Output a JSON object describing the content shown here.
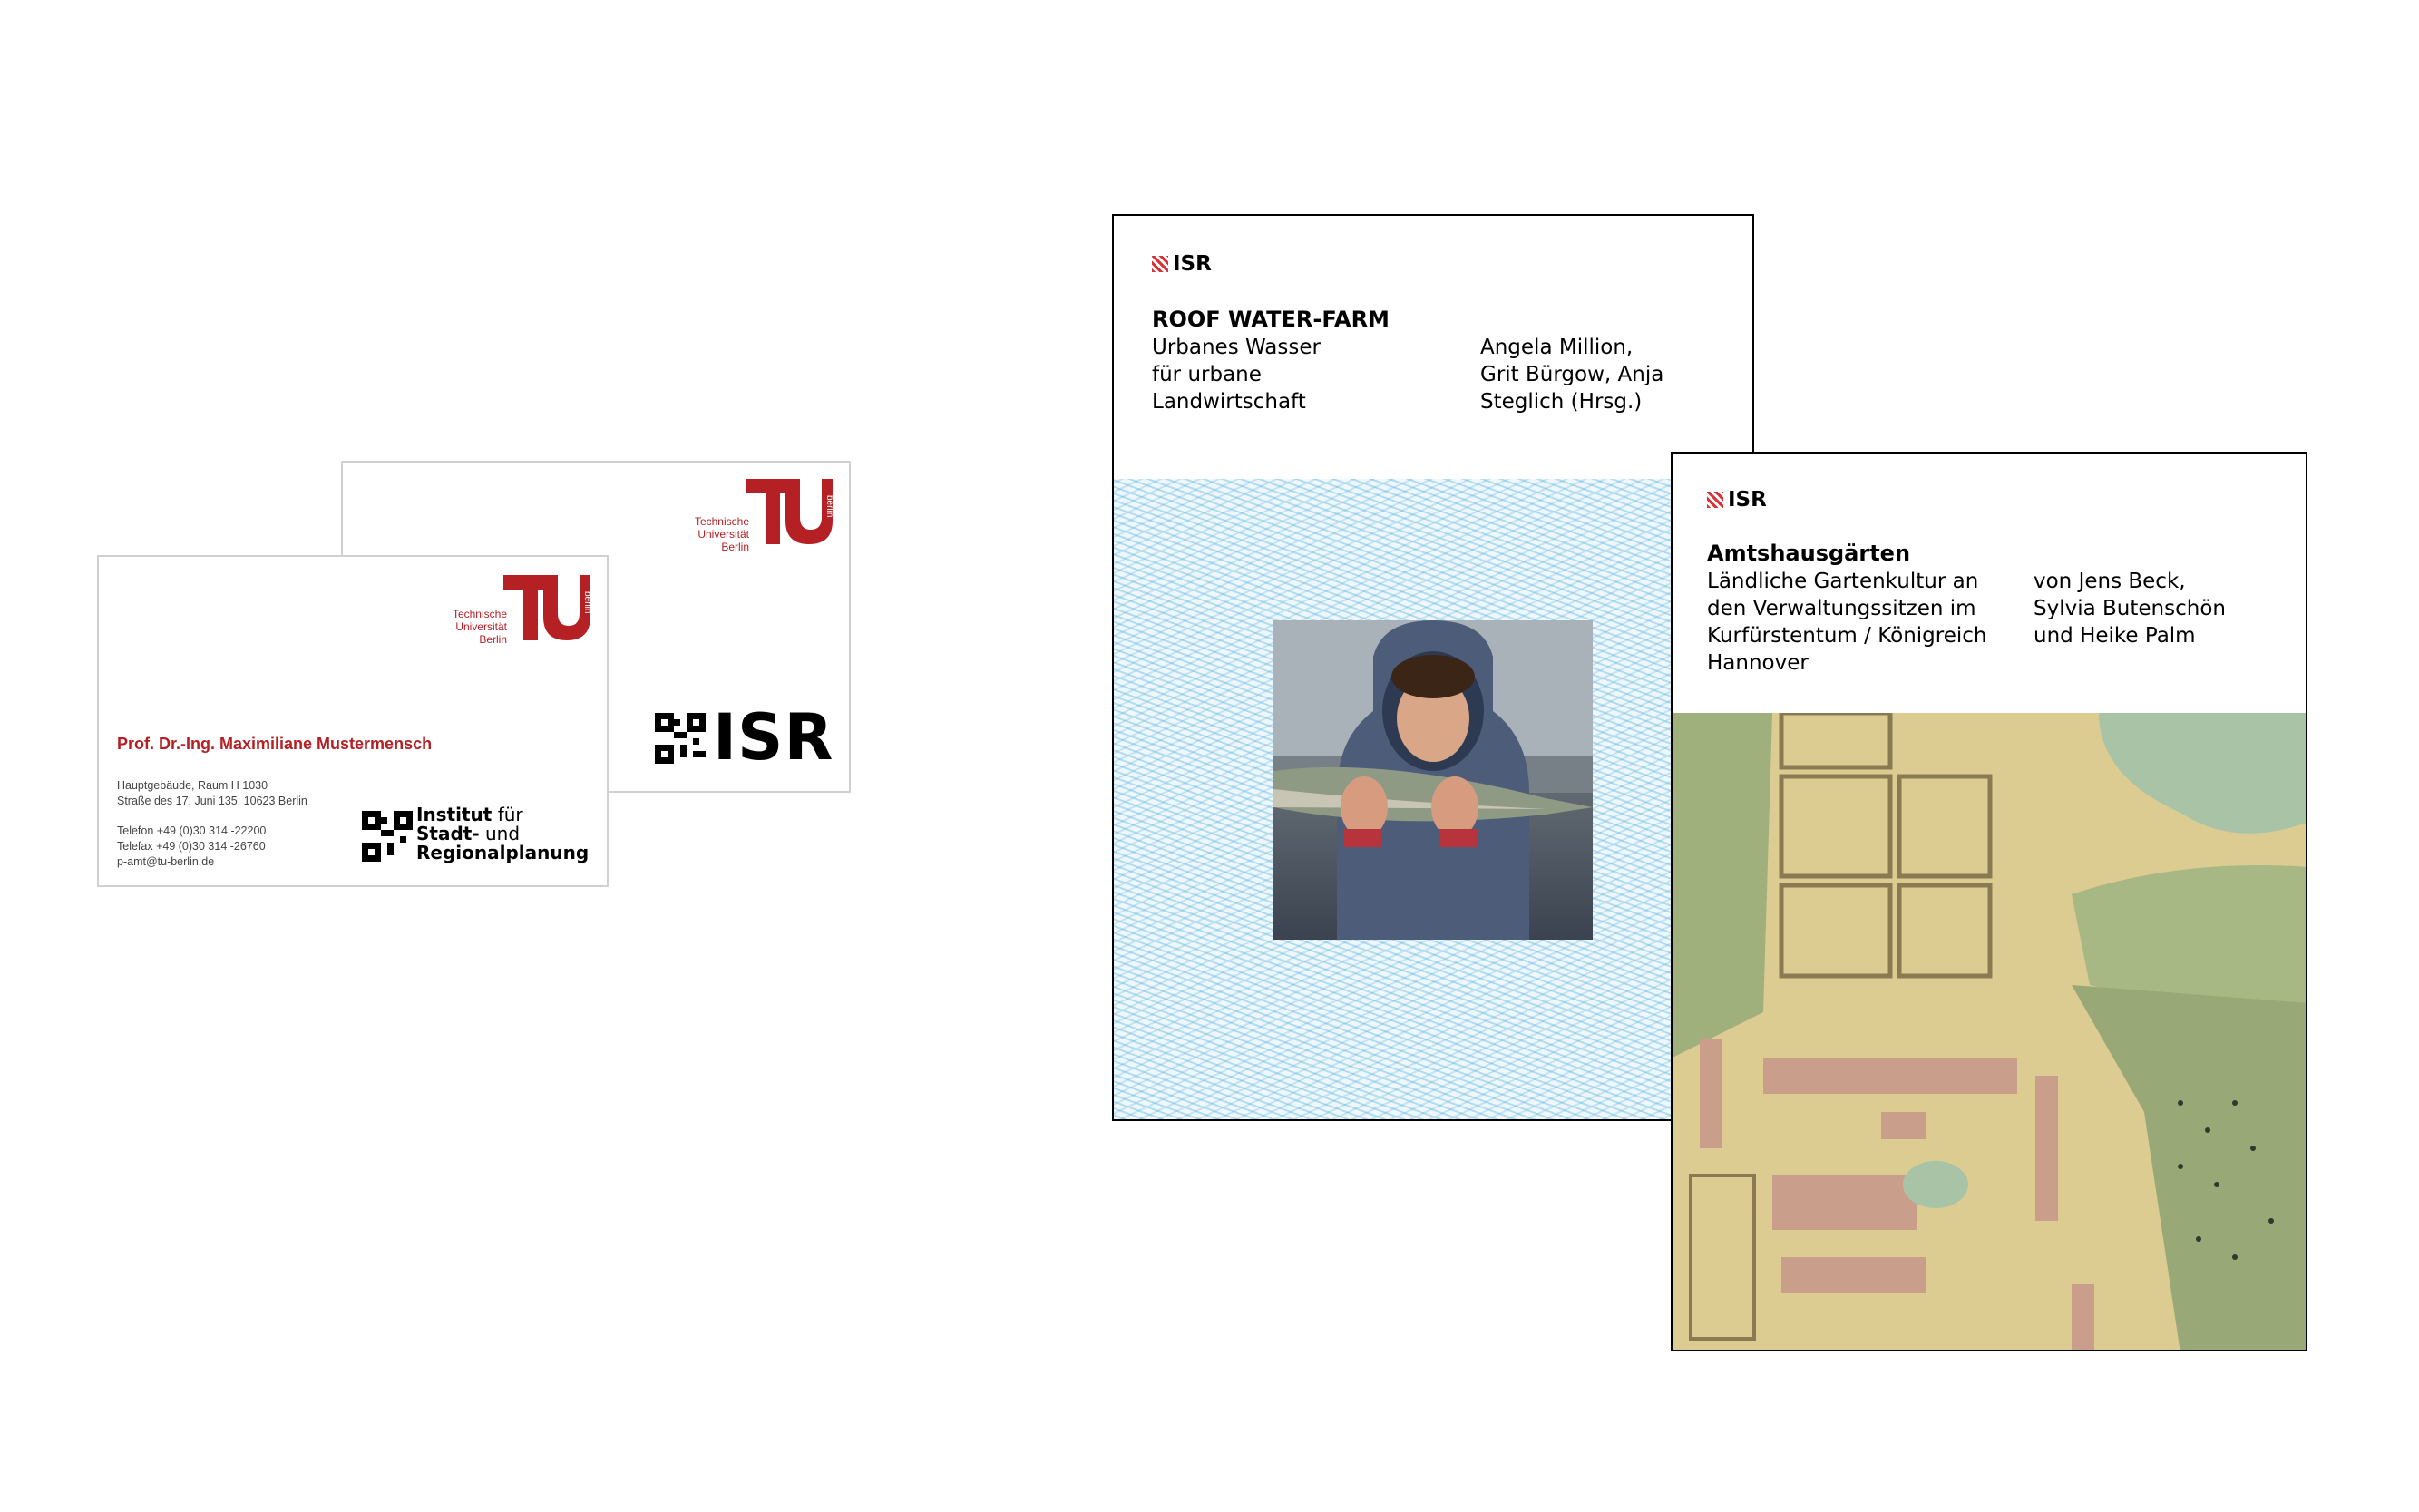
{
  "card_back": {
    "tu_logo_text": [
      "Technische",
      "Universität",
      "Berlin"
    ],
    "tu_logo_side": "berlin",
    "isr_logo": "ISR"
  },
  "card_front": {
    "tu_logo_text": [
      "Technische",
      "Universität",
      "Berlin"
    ],
    "tu_logo_side": "berlin",
    "name": "Prof. Dr.-Ing. Maximiliane Mustermensch",
    "address": [
      "Hauptgebäude, Raum H 1030",
      "Straße des 17. Juni 135, 10623 Berlin"
    ],
    "contact": [
      "Telefon +49 (0)30 314 -22200",
      "Telefax +49 (0)30 314 -26760",
      "p-amt@tu-berlin.de"
    ],
    "institute": {
      "line1_bold": "Institut",
      "line1_rest": " für",
      "line2_bold": "Stadt-",
      "line2_rest": " und",
      "line3_bold": "Regionalplanung"
    }
  },
  "book1": {
    "isr": "ISR",
    "title": "ROOF WATER-FARM",
    "subtitle": [
      "Urbanes Wasser",
      "für urbane",
      "Landwirtschaft"
    ],
    "authors": [
      "Angela Million,",
      "Grit Bürgow, Anja",
      "Steglich (Hrsg.)"
    ]
  },
  "book2": {
    "isr": "ISR",
    "title": "Amtshausgärten",
    "subtitle": [
      "Ländliche Gartenkultur an",
      "den Verwaltungssitzen im",
      "Kurfürstentum / Königreich",
      "Hannover"
    ],
    "authors": [
      "von Jens Beck,",
      "Sylvia Butenschön",
      "und Heike Palm"
    ]
  },
  "colors": {
    "tu_red": "#b52025",
    "isr_red": "#d9333a",
    "water_blue": "#46aadc"
  }
}
